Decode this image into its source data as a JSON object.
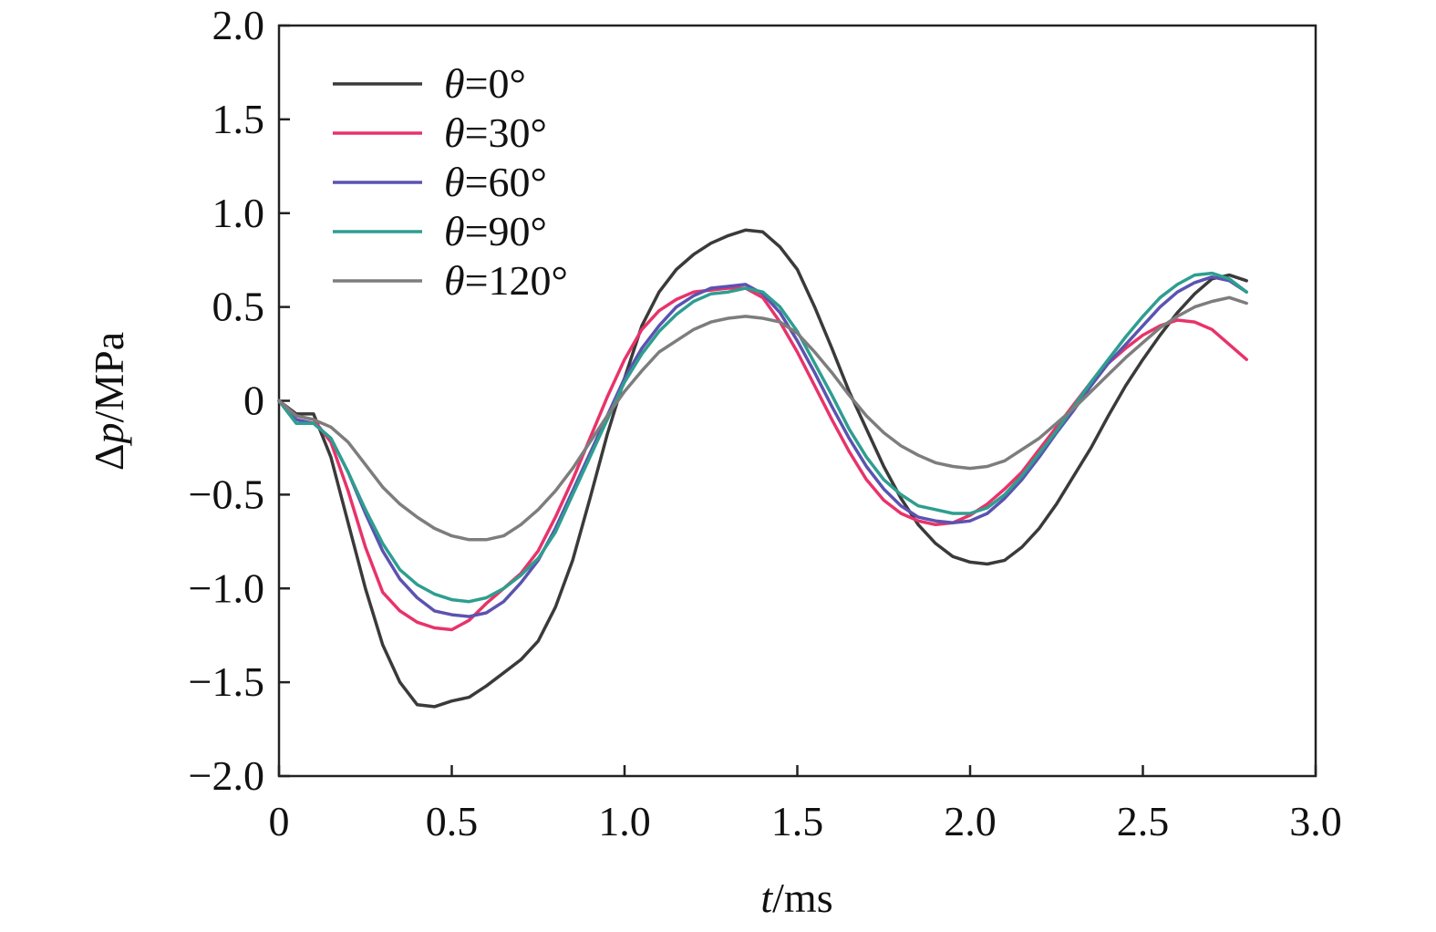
{
  "chart_data": {
    "type": "line",
    "xlabel_var": "t",
    "xlabel_unit": "/ms",
    "ylabel_prefix": "Δ",
    "ylabel_var": "p",
    "ylabel_unit": "/MPa",
    "xlim": [
      0,
      3.0
    ],
    "ylim": [
      -2.0,
      2.0
    ],
    "xticks": [
      0,
      0.5,
      1.0,
      1.5,
      2.0,
      2.5,
      3.0
    ],
    "xtick_labels": [
      "0",
      "0.5",
      "1.0",
      "1.5",
      "2.0",
      "2.5",
      "3.0"
    ],
    "yticks": [
      2.0,
      1.5,
      1.0,
      0.5,
      0,
      -0.5,
      -1.0,
      -1.5,
      -2.0
    ],
    "ytick_labels": [
      "2.0",
      "1.5",
      "1.0",
      "0.5",
      "0",
      "−0.5",
      "−1.0",
      "−1.5",
      "−2.0"
    ],
    "grid": false,
    "legend_position": "top-left",
    "series": [
      {
        "name_var": "θ",
        "name_value": "=0°",
        "color": "#3a3a3a",
        "x": [
          0,
          0.05,
          0.1,
          0.15,
          0.2,
          0.25,
          0.3,
          0.35,
          0.4,
          0.45,
          0.5,
          0.55,
          0.6,
          0.65,
          0.7,
          0.75,
          0.8,
          0.85,
          0.9,
          0.95,
          1.0,
          1.05,
          1.1,
          1.15,
          1.2,
          1.25,
          1.3,
          1.35,
          1.4,
          1.45,
          1.5,
          1.55,
          1.6,
          1.65,
          1.7,
          1.75,
          1.8,
          1.85,
          1.9,
          1.95,
          2.0,
          2.05,
          2.1,
          2.15,
          2.2,
          2.25,
          2.3,
          2.35,
          2.4,
          2.45,
          2.5,
          2.55,
          2.6,
          2.65,
          2.7,
          2.75,
          2.8
        ],
        "y": [
          0,
          -0.07,
          -0.07,
          -0.3,
          -0.65,
          -1.0,
          -1.3,
          -1.5,
          -1.62,
          -1.63,
          -1.6,
          -1.58,
          -1.52,
          -1.45,
          -1.38,
          -1.28,
          -1.1,
          -0.85,
          -0.52,
          -0.18,
          0.12,
          0.4,
          0.58,
          0.7,
          0.78,
          0.84,
          0.88,
          0.91,
          0.9,
          0.82,
          0.7,
          0.5,
          0.28,
          0.05,
          -0.15,
          -0.35,
          -0.52,
          -0.66,
          -0.76,
          -0.83,
          -0.86,
          -0.87,
          -0.85,
          -0.78,
          -0.68,
          -0.55,
          -0.4,
          -0.25,
          -0.08,
          0.08,
          0.22,
          0.35,
          0.47,
          0.57,
          0.65,
          0.67,
          0.64
        ]
      },
      {
        "name_var": "θ",
        "name_value": "=30°",
        "color": "#e8336a",
        "x": [
          0,
          0.05,
          0.1,
          0.15,
          0.2,
          0.25,
          0.3,
          0.35,
          0.4,
          0.45,
          0.5,
          0.55,
          0.6,
          0.65,
          0.7,
          0.75,
          0.8,
          0.85,
          0.9,
          0.95,
          1.0,
          1.05,
          1.1,
          1.15,
          1.2,
          1.25,
          1.3,
          1.35,
          1.4,
          1.45,
          1.5,
          1.55,
          1.6,
          1.65,
          1.7,
          1.75,
          1.8,
          1.85,
          1.9,
          1.95,
          2.0,
          2.05,
          2.1,
          2.15,
          2.2,
          2.25,
          2.3,
          2.35,
          2.4,
          2.45,
          2.5,
          2.55,
          2.6,
          2.65,
          2.7,
          2.75,
          2.8
        ],
        "y": [
          0,
          -0.08,
          -0.1,
          -0.22,
          -0.48,
          -0.78,
          -1.02,
          -1.12,
          -1.18,
          -1.21,
          -1.22,
          -1.17,
          -1.08,
          -1.0,
          -0.92,
          -0.8,
          -0.62,
          -0.42,
          -0.2,
          0.02,
          0.22,
          0.38,
          0.48,
          0.54,
          0.58,
          0.59,
          0.6,
          0.6,
          0.55,
          0.42,
          0.26,
          0.08,
          -0.1,
          -0.27,
          -0.42,
          -0.53,
          -0.6,
          -0.64,
          -0.66,
          -0.65,
          -0.61,
          -0.55,
          -0.47,
          -0.38,
          -0.26,
          -0.14,
          -0.02,
          0.1,
          0.2,
          0.28,
          0.35,
          0.4,
          0.43,
          0.42,
          0.38,
          0.3,
          0.22
        ]
      },
      {
        "name_var": "θ",
        "name_value": "=60°",
        "color": "#5b53b0",
        "x": [
          0,
          0.05,
          0.1,
          0.15,
          0.2,
          0.25,
          0.3,
          0.35,
          0.4,
          0.45,
          0.5,
          0.55,
          0.6,
          0.65,
          0.7,
          0.75,
          0.8,
          0.85,
          0.9,
          0.95,
          1.0,
          1.05,
          1.1,
          1.15,
          1.2,
          1.25,
          1.3,
          1.35,
          1.4,
          1.45,
          1.5,
          1.55,
          1.6,
          1.65,
          1.7,
          1.75,
          1.8,
          1.85,
          1.9,
          1.95,
          2.0,
          2.05,
          2.1,
          2.15,
          2.2,
          2.25,
          2.3,
          2.35,
          2.4,
          2.45,
          2.5,
          2.55,
          2.6,
          2.65,
          2.7,
          2.75,
          2.8
        ],
        "y": [
          0,
          -0.1,
          -0.12,
          -0.2,
          -0.38,
          -0.6,
          -0.8,
          -0.95,
          -1.05,
          -1.12,
          -1.14,
          -1.15,
          -1.13,
          -1.07,
          -0.97,
          -0.85,
          -0.68,
          -0.48,
          -0.28,
          -0.08,
          0.12,
          0.28,
          0.4,
          0.5,
          0.56,
          0.6,
          0.61,
          0.62,
          0.57,
          0.47,
          0.32,
          0.15,
          -0.03,
          -0.2,
          -0.35,
          -0.47,
          -0.56,
          -0.62,
          -0.64,
          -0.65,
          -0.64,
          -0.6,
          -0.52,
          -0.42,
          -0.3,
          -0.17,
          -0.05,
          0.08,
          0.2,
          0.3,
          0.4,
          0.5,
          0.58,
          0.63,
          0.66,
          0.64,
          0.58
        ]
      },
      {
        "name_var": "θ",
        "name_value": "=90°",
        "color": "#2e9e8f",
        "x": [
          0,
          0.05,
          0.1,
          0.15,
          0.2,
          0.25,
          0.3,
          0.35,
          0.4,
          0.45,
          0.5,
          0.55,
          0.6,
          0.65,
          0.7,
          0.75,
          0.8,
          0.85,
          0.9,
          0.95,
          1.0,
          1.05,
          1.1,
          1.15,
          1.2,
          1.25,
          1.3,
          1.35,
          1.4,
          1.45,
          1.5,
          1.55,
          1.6,
          1.65,
          1.7,
          1.75,
          1.8,
          1.85,
          1.9,
          1.95,
          2.0,
          2.05,
          2.1,
          2.15,
          2.2,
          2.25,
          2.3,
          2.35,
          2.4,
          2.45,
          2.5,
          2.55,
          2.6,
          2.65,
          2.7,
          2.75,
          2.8
        ],
        "y": [
          0,
          -0.12,
          -0.12,
          -0.2,
          -0.38,
          -0.58,
          -0.76,
          -0.9,
          -0.98,
          -1.03,
          -1.06,
          -1.07,
          -1.05,
          -1.0,
          -0.93,
          -0.84,
          -0.7,
          -0.5,
          -0.3,
          -0.1,
          0.1,
          0.25,
          0.37,
          0.46,
          0.53,
          0.57,
          0.58,
          0.6,
          0.58,
          0.5,
          0.37,
          0.2,
          0.03,
          -0.15,
          -0.3,
          -0.42,
          -0.5,
          -0.56,
          -0.58,
          -0.6,
          -0.6,
          -0.57,
          -0.5,
          -0.4,
          -0.28,
          -0.16,
          -0.03,
          0.1,
          0.22,
          0.34,
          0.45,
          0.55,
          0.62,
          0.67,
          0.68,
          0.65,
          0.58
        ]
      },
      {
        "name_var": "θ",
        "name_value": "=120°",
        "color": "#7d7d7d",
        "x": [
          0,
          0.05,
          0.1,
          0.15,
          0.2,
          0.25,
          0.3,
          0.35,
          0.4,
          0.45,
          0.5,
          0.55,
          0.6,
          0.65,
          0.7,
          0.75,
          0.8,
          0.85,
          0.9,
          0.95,
          1.0,
          1.05,
          1.1,
          1.15,
          1.2,
          1.25,
          1.3,
          1.35,
          1.4,
          1.45,
          1.5,
          1.55,
          1.6,
          1.65,
          1.7,
          1.75,
          1.8,
          1.85,
          1.9,
          1.95,
          2.0,
          2.05,
          2.1,
          2.15,
          2.2,
          2.25,
          2.3,
          2.35,
          2.4,
          2.45,
          2.5,
          2.55,
          2.6,
          2.65,
          2.7,
          2.75,
          2.8
        ],
        "y": [
          0,
          -0.08,
          -0.1,
          -0.14,
          -0.22,
          -0.34,
          -0.46,
          -0.55,
          -0.62,
          -0.68,
          -0.72,
          -0.74,
          -0.74,
          -0.72,
          -0.66,
          -0.58,
          -0.48,
          -0.36,
          -0.22,
          -0.08,
          0.05,
          0.16,
          0.26,
          0.32,
          0.38,
          0.42,
          0.44,
          0.45,
          0.44,
          0.42,
          0.36,
          0.26,
          0.15,
          0.03,
          -0.08,
          -0.17,
          -0.24,
          -0.29,
          -0.33,
          -0.35,
          -0.36,
          -0.35,
          -0.32,
          -0.26,
          -0.2,
          -0.12,
          -0.04,
          0.05,
          0.14,
          0.23,
          0.31,
          0.39,
          0.45,
          0.5,
          0.53,
          0.55,
          0.52
        ]
      }
    ]
  }
}
